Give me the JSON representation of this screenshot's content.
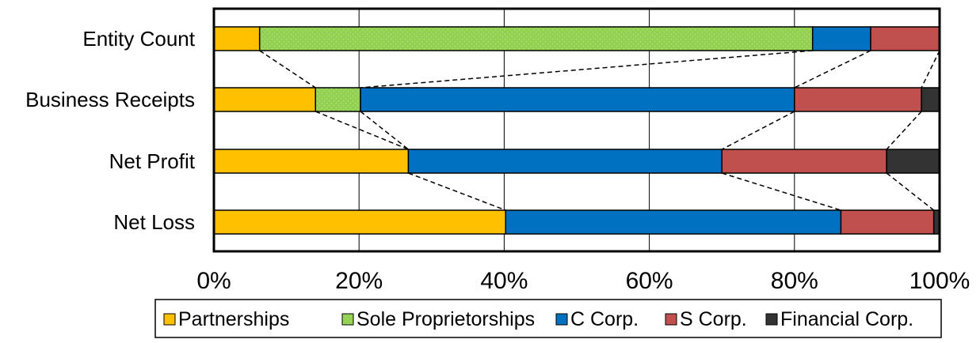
{
  "chart_data": {
    "type": "bar",
    "orientation": "horizontal",
    "stacked": "percent",
    "categories": [
      "Entity Count",
      "Business Receipts",
      "Net Profit",
      "Net Loss"
    ],
    "series": [
      {
        "name": "Partnerships",
        "color": "#FFC000",
        "values": [
          6.3,
          14.0,
          26.8,
          40.2
        ]
      },
      {
        "name": "Sole Proprietorships",
        "color": "#92D050",
        "values": [
          76.2,
          6.2,
          0.0,
          0.0
        ]
      },
      {
        "name": "C Corp.",
        "color": "#0070C0",
        "values": [
          8.0,
          59.8,
          43.2,
          46.2
        ]
      },
      {
        "name": "S Corp.",
        "color": "#C0504D",
        "values": [
          9.5,
          17.5,
          22.7,
          12.8
        ]
      },
      {
        "name": "Financial Corp.",
        "color": "#333333",
        "values": [
          0.0,
          2.5,
          7.3,
          0.8
        ]
      }
    ],
    "xlim": [
      0,
      100
    ],
    "xticks": [
      "0%",
      "20%",
      "40%",
      "60%",
      "80%",
      "100%"
    ],
    "grid": "vertical",
    "connector_lines": "dashed",
    "legend_position": "bottom"
  }
}
